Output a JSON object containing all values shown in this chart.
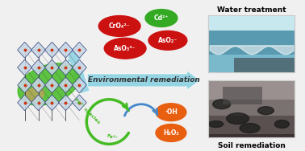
{
  "bg_color": "#f0f0f0",
  "arrow_main_color": "#7ecde0",
  "arrow_main_label": "Environmental remediation",
  "red_ellipse_color": "#cc1111",
  "green_ellipse_color": "#33aa22",
  "orange_ellipse_color": "#e85f10",
  "green_cycle_color": "#44bb22",
  "blue_arc_color": "#4488cc",
  "red_labels": [
    "CrO₄²⁻",
    "AsO₃³⁻",
    "AsO₂⁻"
  ],
  "green_labels": [
    "Cd²⁺"
  ],
  "orange_labels": [
    "·OH",
    "H₂O₂"
  ],
  "fe_species_label": "Fe³⁺ species",
  "fe2_label": "Fe²⁺",
  "water_treatment_label": "Water treatment",
  "soil_remediation_label": "Soil remediation",
  "crystal_green": "#44bb22",
  "crystal_face_color": "#c8d8e8",
  "crystal_edge_color": "#334477",
  "crystal_dot_color": "#cc3311"
}
